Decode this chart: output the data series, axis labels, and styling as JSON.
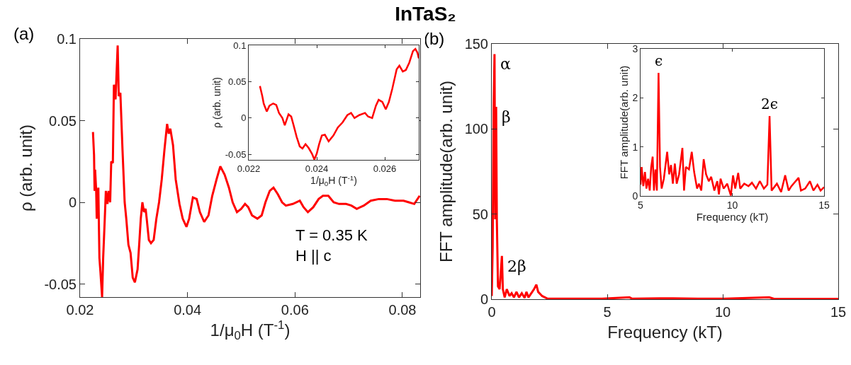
{
  "chart_data": [
    {
      "type": "line",
      "title": "InTaS₂",
      "xlabel": "1/μ$_{0}$H (T$^{-1}$)",
      "ylabel": "ρ (arb. unit)",
      "color": "#ff0000",
      "grid": false,
      "xlim": [
        0.02,
        0.0833
      ],
      "ylim": [
        -0.058,
        0.1
      ],
      "xticks": [
        0.02,
        0.04,
        0.06,
        0.08
      ],
      "yticks": [
        -0.05,
        0,
        0.05,
        0.1
      ],
      "annotations": [
        "(a)",
        "T = 0.35 K",
        "H || c"
      ],
      "x": [
        0.0224,
        0.0226,
        0.0227,
        0.0228,
        0.023,
        0.0231,
        0.0234,
        0.0236,
        0.0238,
        0.0241,
        0.0243,
        0.0246,
        0.0248,
        0.0251,
        0.0253,
        0.0256,
        0.0258,
        0.0261,
        0.0263,
        0.0266,
        0.027,
        0.0272,
        0.0275,
        0.0279,
        0.0283,
        0.0286,
        0.029,
        0.0294,
        0.0298,
        0.0302,
        0.0307,
        0.031,
        0.0313,
        0.0316,
        0.0319,
        0.0322,
        0.0324,
        0.0328,
        0.0332,
        0.0337,
        0.0342,
        0.0347,
        0.0352,
        0.0357,
        0.0362,
        0.0365,
        0.0368,
        0.0373,
        0.0378,
        0.0385,
        0.0391,
        0.0398,
        0.0403,
        0.041,
        0.0417,
        0.0423,
        0.0431,
        0.0439,
        0.0446,
        0.0454,
        0.0461,
        0.0469,
        0.0477,
        0.0484,
        0.0492,
        0.05,
        0.0507,
        0.0513,
        0.052,
        0.053,
        0.0538,
        0.0545,
        0.0553,
        0.056,
        0.0568,
        0.0576,
        0.0583,
        0.0596,
        0.0609,
        0.0616,
        0.0624,
        0.0634,
        0.0644,
        0.0652,
        0.0662,
        0.0672,
        0.0682,
        0.0695,
        0.0705,
        0.0715,
        0.0728,
        0.0741,
        0.0756,
        0.0771,
        0.0786,
        0.0802,
        0.0812,
        0.0822,
        0.0832
      ],
      "values": [
        0.043,
        0.029,
        0.007,
        0.02,
        0.007,
        -0.01,
        0.009,
        -0.034,
        -0.043,
        -0.058,
        -0.034,
        -0.01,
        0.007,
        -0.001,
        0.007,
        0.0,
        0.025,
        0.024,
        0.072,
        0.063,
        0.096,
        0.065,
        0.067,
        0.032,
        0.0,
        -0.01,
        -0.026,
        -0.031,
        -0.046,
        -0.049,
        -0.041,
        -0.026,
        -0.01,
        0.0,
        -0.006,
        -0.004,
        -0.01,
        -0.023,
        -0.025,
        -0.023,
        -0.01,
        0.0,
        0.014,
        0.032,
        0.048,
        0.042,
        0.045,
        0.035,
        0.014,
        -0.001,
        -0.01,
        -0.015,
        -0.01,
        0.003,
        0.002,
        -0.006,
        -0.012,
        -0.008,
        0.004,
        0.014,
        0.022,
        0.017,
        0.009,
        0.0,
        -0.006,
        -0.004,
        -0.001,
        -0.003,
        -0.008,
        -0.01,
        -0.008,
        0.0,
        0.007,
        0.009,
        0.005,
        0.0,
        -0.002,
        -0.001,
        0.001,
        -0.003,
        -0.006,
        -0.003,
        0.002,
        0.004,
        0.004,
        0.0,
        -0.001,
        -0.001,
        -0.002,
        -0.004,
        -0.002,
        0.001,
        0.002,
        0.002,
        0.001,
        0.001,
        0.0,
        -0.001,
        0.004
      ]
    },
    {
      "type": "line",
      "xlabel": "1/μ$_{0}$H (T$^{-1}$)",
      "ylabel": "ρ (arb. unit)",
      "color": "#ff0000",
      "grid": false,
      "xlim": [
        0.022,
        0.027
      ],
      "ylim": [
        -0.0575,
        0.1
      ],
      "xticks": [
        0.022,
        0.024,
        0.026
      ],
      "yticks": [
        -0.05,
        0,
        0.05,
        0.1
      ],
      "x": [
        0.02233,
        0.0224,
        0.02244,
        0.02253,
        0.02261,
        0.02272,
        0.02281,
        0.02289,
        0.02299,
        0.02306,
        0.02317,
        0.02325,
        0.02332,
        0.02341,
        0.0235,
        0.02358,
        0.02367,
        0.02376,
        0.02386,
        0.02393,
        0.024,
        0.02407,
        0.02415,
        0.02424,
        0.02435,
        0.02449,
        0.02462,
        0.02476,
        0.0249,
        0.02501,
        0.02511,
        0.02525,
        0.02542,
        0.02551,
        0.02563,
        0.02574,
        0.02582,
        0.02593,
        0.02603,
        0.02612,
        0.02622,
        0.02635,
        0.02643,
        0.02653,
        0.02662,
        0.02672,
        0.02683,
        0.0269,
        0.02696,
        0.027
      ],
      "values": [
        0.044,
        0.03,
        0.02,
        0.009,
        0.017,
        0.02,
        0.018,
        0.007,
        0.0,
        -0.01,
        0.005,
        0.002,
        -0.01,
        -0.026,
        -0.039,
        -0.042,
        -0.036,
        -0.041,
        -0.049,
        -0.057,
        -0.049,
        -0.036,
        -0.024,
        -0.023,
        -0.032,
        -0.024,
        -0.013,
        -0.006,
        0.004,
        0.007,
        0.0,
        0.004,
        0.007,
        0.002,
        0.0,
        0.017,
        0.025,
        0.022,
        0.012,
        0.022,
        0.04,
        0.067,
        0.072,
        0.064,
        0.066,
        0.076,
        0.092,
        0.095,
        0.09,
        0.082
      ]
    },
    {
      "type": "line",
      "xlabel": "Frequency (kT)",
      "ylabel": "FFT amplitude(arb. unit)",
      "color": "#ff0000",
      "grid": false,
      "xlim": [
        0,
        15
      ],
      "ylim": [
        0,
        150
      ],
      "xticks": [
        0,
        5,
        10,
        15
      ],
      "yticks": [
        0,
        50,
        100,
        150
      ],
      "annotations": [
        "(b)",
        {
          "text": "α",
          "x": 0.12,
          "y": 144
        },
        {
          "text": "β",
          "x": 0.19,
          "y": 113
        },
        {
          "text": "2β",
          "x": 0.44,
          "y": 25.4
        }
      ],
      "x": [
        0,
        0.04,
        0.08,
        0.12,
        0.15,
        0.19,
        0.22,
        0.27,
        0.34,
        0.39,
        0.44,
        0.48,
        0.56,
        0.65,
        0.77,
        0.86,
        0.96,
        1.07,
        1.18,
        1.3,
        1.42,
        1.5,
        1.59,
        1.71,
        1.83,
        1.93,
        2.01,
        2.18,
        2.42,
        3.01,
        3.72,
        4.78,
        5.96,
        6.08,
        7.26,
        7.85,
        8.92,
        10.1,
        12.01,
        12.22,
        13.64,
        15
      ],
      "values": [
        1.9,
        31,
        111,
        144,
        47,
        113,
        47,
        7.5,
        5.9,
        15.5,
        25.4,
        5.9,
        1.1,
        5.9,
        1.9,
        3.5,
        1.1,
        4.3,
        1.1,
        3.5,
        0.8,
        4.3,
        1.1,
        3.5,
        5.9,
        8.6,
        4.3,
        1.9,
        0.3,
        0.3,
        0.3,
        0.3,
        1.1,
        0.3,
        0.5,
        0.5,
        0.3,
        0.3,
        1.1,
        0.2,
        0.2,
        0.2
      ]
    },
    {
      "type": "line",
      "xlabel": "Frequency (kT)",
      "ylabel": "FFT amplitude(arb. unit)",
      "color": "#ff0000",
      "grid": false,
      "xlim": [
        5,
        15
      ],
      "ylim": [
        0,
        3
      ],
      "xticks": [
        5,
        10,
        15
      ],
      "yticks": [
        0,
        1,
        2,
        3
      ],
      "annotations": [
        {
          "text": "ϵ",
          "x": 5.98,
          "y": 2.51
        },
        {
          "text": "2ϵ",
          "x": 12.03,
          "y": 1.63
        }
      ],
      "x": [
        5.0,
        5.06,
        5.15,
        5.24,
        5.32,
        5.41,
        5.5,
        5.58,
        5.66,
        5.73,
        5.81,
        5.89,
        5.98,
        6.06,
        6.15,
        6.27,
        6.45,
        6.56,
        6.66,
        6.76,
        6.87,
        6.97,
        7.1,
        7.28,
        7.37,
        7.47,
        7.64,
        7.79,
        7.92,
        8.08,
        8.18,
        8.31,
        8.44,
        8.57,
        8.72,
        8.85,
        9.02,
        9.18,
        9.27,
        9.36,
        9.53,
        9.72,
        9.92,
        10.04,
        10.16,
        10.32,
        10.43,
        10.65,
        10.88,
        11.07,
        11.29,
        11.5,
        11.72,
        11.91,
        12.03,
        12.14,
        12.43,
        12.66,
        12.88,
        13.07,
        13.22,
        13.61,
        13.74,
        13.97,
        14.23,
        14.42,
        14.64,
        14.81,
        15.0
      ],
      "values": [
        0.23,
        0.59,
        0.2,
        0.49,
        0.15,
        0.35,
        0.11,
        0.59,
        0.8,
        0.11,
        0.54,
        0.11,
        2.51,
        0.59,
        0.15,
        0.35,
        0.9,
        0.44,
        0.63,
        0.25,
        0.66,
        0.25,
        0.44,
        0.98,
        0.11,
        0.59,
        0.54,
        0.9,
        0.49,
        0.15,
        0.25,
        0.11,
        0.75,
        0.44,
        0.3,
        0.39,
        0.11,
        0.3,
        0.03,
        0.35,
        0.15,
        0.25,
        0.01,
        0.42,
        0.15,
        0.47,
        0.15,
        0.25,
        0.2,
        0.27,
        0.15,
        0.3,
        0.15,
        0.23,
        1.63,
        0.11,
        0.25,
        0.08,
        0.42,
        0.11,
        0.2,
        0.37,
        0.11,
        0.15,
        0.3,
        0.11,
        0.23,
        0.11,
        0.18
      ]
    }
  ]
}
